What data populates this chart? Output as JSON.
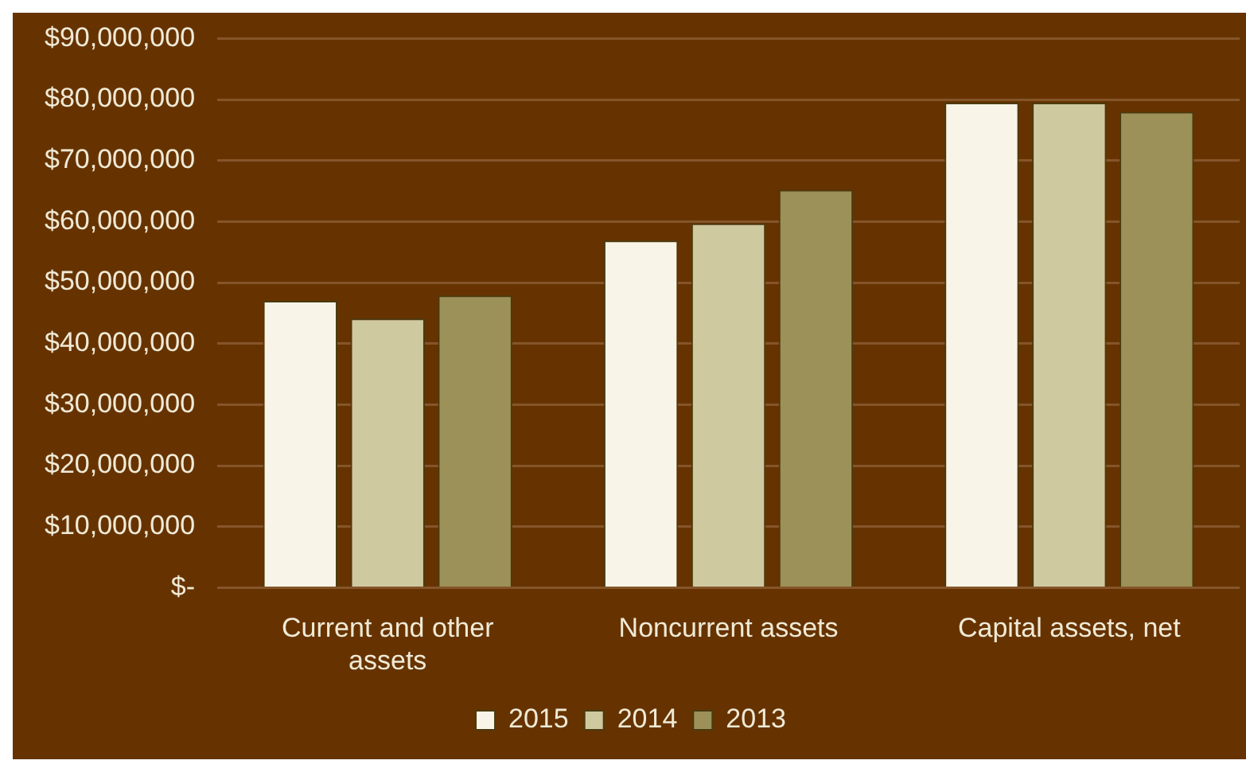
{
  "chart_data": {
    "type": "bar",
    "categories": [
      "Current and other assets",
      "Noncurrent assets",
      "Capital assets, net"
    ],
    "series": [
      {
        "name": "2015",
        "color": "#f8f5e8",
        "values": [
          47000000,
          56900000,
          79500000
        ]
      },
      {
        "name": "2014",
        "color": "#cfc9a0",
        "values": [
          44100000,
          59700000,
          79500000
        ]
      },
      {
        "name": "2013",
        "color": "#9c9158",
        "values": [
          47900000,
          65200000,
          78000000
        ]
      }
    ],
    "ylim": [
      0,
      90000000
    ],
    "yticks": [
      {
        "value": 0,
        "label": "$-"
      },
      {
        "value": 10000000,
        "label": "$10,000,000"
      },
      {
        "value": 20000000,
        "label": "$20,000,000"
      },
      {
        "value": 30000000,
        "label": "$30,000,000"
      },
      {
        "value": 40000000,
        "label": "$40,000,000"
      },
      {
        "value": 50000000,
        "label": "$50,000,000"
      },
      {
        "value": 60000000,
        "label": "$60,000,000"
      },
      {
        "value": 70000000,
        "label": "$70,000,000"
      },
      {
        "value": 80000000,
        "label": "$80,000,000"
      },
      {
        "value": 90000000,
        "label": "$90,000,000"
      }
    ],
    "grid": "y",
    "legend": "bottom"
  }
}
